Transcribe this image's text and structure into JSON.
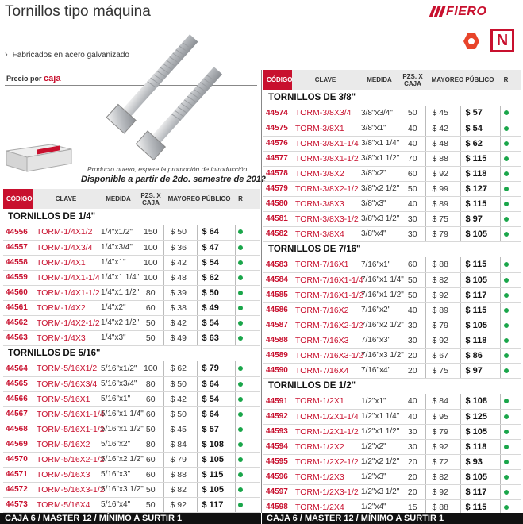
{
  "header": {
    "title": "Tornillos tipo máquina",
    "subtitle": "Fabricados en acero galvanizado",
    "brand": "FIERO",
    "badge_letter": "N",
    "price_by": "Precio por",
    "price_unit": "caja"
  },
  "promo": {
    "line1": "Producto nuevo, espere la promoción de introducción",
    "line2": "Disponible a partir de 2do. semestre de 2012"
  },
  "columns": {
    "code": "CÓDIGO",
    "clave": "CLAVE",
    "medida": "MEDIDA",
    "pzs": "PZS. X CAJA",
    "mayoreo": "MAYOREO",
    "publico": "PÚBLICO",
    "r": "R"
  },
  "colors": {
    "accent": "#c8102e",
    "status_dot": "#1aa64a"
  },
  "left_sections": [
    {
      "title": "TORNILLOS DE 1/4\"",
      "rows": [
        {
          "code": "44556",
          "clave": "TORM-1/4X1/2",
          "medida": "1/4\"x1/2\"",
          "pzs": "150",
          "mayoreo": "$ 50",
          "publico": "$ 64"
        },
        {
          "code": "44557",
          "clave": "TORM-1/4X3/4",
          "medida": "1/4\"x3/4\"",
          "pzs": "100",
          "mayoreo": "$ 36",
          "publico": "$ 47"
        },
        {
          "code": "44558",
          "clave": "TORM-1/4X1",
          "medida": "1/4\"x1\"",
          "pzs": "100",
          "mayoreo": "$ 42",
          "publico": "$ 54"
        },
        {
          "code": "44559",
          "clave": "TORM-1/4X1-1/4",
          "medida": "1/4\"x1 1/4\"",
          "pzs": "100",
          "mayoreo": "$ 48",
          "publico": "$ 62"
        },
        {
          "code": "44560",
          "clave": "TORM-1/4X1-1/2",
          "medida": "1/4\"x1 1/2\"",
          "pzs": "80",
          "mayoreo": "$ 39",
          "publico": "$ 50"
        },
        {
          "code": "44561",
          "clave": "TORM-1/4X2",
          "medida": "1/4\"x2\"",
          "pzs": "60",
          "mayoreo": "$ 38",
          "publico": "$ 49"
        },
        {
          "code": "44562",
          "clave": "TORM-1/4X2-1/2",
          "medida": "1/4\"x2 1/2\"",
          "pzs": "50",
          "mayoreo": "$ 42",
          "publico": "$ 54"
        },
        {
          "code": "44563",
          "clave": "TORM-1/4X3",
          "medida": "1/4\"x3\"",
          "pzs": "50",
          "mayoreo": "$ 49",
          "publico": "$ 63"
        }
      ]
    },
    {
      "title": "TORNILLOS DE 5/16\"",
      "rows": [
        {
          "code": "44564",
          "clave": "TORM-5/16X1/2",
          "medida": "5/16\"x1/2\"",
          "pzs": "100",
          "mayoreo": "$ 62",
          "publico": "$ 79"
        },
        {
          "code": "44565",
          "clave": "TORM-5/16X3/4",
          "medida": "5/16\"x3/4\"",
          "pzs": "80",
          "mayoreo": "$ 50",
          "publico": "$ 64"
        },
        {
          "code": "44566",
          "clave": "TORM-5/16X1",
          "medida": "5/16\"x1\"",
          "pzs": "60",
          "mayoreo": "$ 42",
          "publico": "$ 54"
        },
        {
          "code": "44567",
          "clave": "TORM-5/16X1-1/4",
          "medida": "5/16\"x1 1/4\"",
          "pzs": "60",
          "mayoreo": "$ 50",
          "publico": "$ 64"
        },
        {
          "code": "44568",
          "clave": "TORM-5/16X1-1/2",
          "medida": "5/16\"x1 1/2\"",
          "pzs": "50",
          "mayoreo": "$ 45",
          "publico": "$ 57"
        },
        {
          "code": "44569",
          "clave": "TORM-5/16X2",
          "medida": "5/16\"x2\"",
          "pzs": "80",
          "mayoreo": "$ 84",
          "publico": "$ 108"
        },
        {
          "code": "44570",
          "clave": "TORM-5/16X2-1/2",
          "medida": "5/16\"x2 1/2\"",
          "pzs": "60",
          "mayoreo": "$ 79",
          "publico": "$ 105"
        },
        {
          "code": "44571",
          "clave": "TORM-5/16X3",
          "medida": "5/16\"x3\"",
          "pzs": "60",
          "mayoreo": "$ 88",
          "publico": "$ 115"
        },
        {
          "code": "44572",
          "clave": "TORM-5/16X3-1/2",
          "medida": "5/16\"x3 1/2\"",
          "pzs": "50",
          "mayoreo": "$ 82",
          "publico": "$ 105"
        },
        {
          "code": "44573",
          "clave": "TORM-5/16X4",
          "medida": "5/16\"x4\"",
          "pzs": "50",
          "mayoreo": "$ 92",
          "publico": "$ 117"
        }
      ]
    }
  ],
  "right_sections": [
    {
      "title": "TORNILLOS DE 3/8\"",
      "rows": [
        {
          "code": "44574",
          "clave": "TORM-3/8X3/4",
          "medida": "3/8\"x3/4\"",
          "pzs": "50",
          "mayoreo": "$ 45",
          "publico": "$ 57"
        },
        {
          "code": "44575",
          "clave": "TORM-3/8X1",
          "medida": "3/8\"x1\"",
          "pzs": "40",
          "mayoreo": "$ 42",
          "publico": "$ 54"
        },
        {
          "code": "44576",
          "clave": "TORM-3/8X1-1/4",
          "medida": "3/8\"x1 1/4\"",
          "pzs": "40",
          "mayoreo": "$ 48",
          "publico": "$ 62"
        },
        {
          "code": "44577",
          "clave": "TORM-3/8X1-1/2",
          "medida": "3/8\"x1 1/2\"",
          "pzs": "70",
          "mayoreo": "$ 88",
          "publico": "$ 115"
        },
        {
          "code": "44578",
          "clave": "TORM-3/8X2",
          "medida": "3/8\"x2\"",
          "pzs": "60",
          "mayoreo": "$ 92",
          "publico": "$ 118"
        },
        {
          "code": "44579",
          "clave": "TORM-3/8X2-1/2",
          "medida": "3/8\"x2 1/2\"",
          "pzs": "50",
          "mayoreo": "$ 99",
          "publico": "$ 127"
        },
        {
          "code": "44580",
          "clave": "TORM-3/8X3",
          "medida": "3/8\"x3\"",
          "pzs": "40",
          "mayoreo": "$ 89",
          "publico": "$ 115"
        },
        {
          "code": "44581",
          "clave": "TORM-3/8X3-1/2",
          "medida": "3/8\"x3 1/2\"",
          "pzs": "30",
          "mayoreo": "$ 75",
          "publico": "$ 97"
        },
        {
          "code": "44582",
          "clave": "TORM-3/8X4",
          "medida": "3/8\"x4\"",
          "pzs": "30",
          "mayoreo": "$ 79",
          "publico": "$ 105"
        }
      ]
    },
    {
      "title": "TORNILLOS DE 7/16\"",
      "rows": [
        {
          "code": "44583",
          "clave": "TORM-7/16X1",
          "medida": "7/16\"x1\"",
          "pzs": "60",
          "mayoreo": "$ 88",
          "publico": "$ 115"
        },
        {
          "code": "44584",
          "clave": "TORM-7/16X1-1/4",
          "medida": "7/16\"x1 1/4\"",
          "pzs": "50",
          "mayoreo": "$ 82",
          "publico": "$ 105"
        },
        {
          "code": "44585",
          "clave": "TORM-7/16X1-1/2",
          "medida": "7/16\"x1 1/2\"",
          "pzs": "50",
          "mayoreo": "$ 92",
          "publico": "$ 117"
        },
        {
          "code": "44586",
          "clave": "TORM-7/16X2",
          "medida": "7/16\"x2\"",
          "pzs": "40",
          "mayoreo": "$ 89",
          "publico": "$ 115"
        },
        {
          "code": "44587",
          "clave": "TORM-7/16X2-1/2",
          "medida": "7/16\"x2 1/2\"",
          "pzs": "30",
          "mayoreo": "$ 79",
          "publico": "$ 105"
        },
        {
          "code": "44588",
          "clave": "TORM-7/16X3",
          "medida": "7/16\"x3\"",
          "pzs": "30",
          "mayoreo": "$ 92",
          "publico": "$ 118"
        },
        {
          "code": "44589",
          "clave": "TORM-7/16X3-1/2",
          "medida": "7/16\"x3 1/2\"",
          "pzs": "20",
          "mayoreo": "$ 67",
          "publico": "$ 86"
        },
        {
          "code": "44590",
          "clave": "TORM-7/16X4",
          "medida": "7/16\"x4\"",
          "pzs": "20",
          "mayoreo": "$ 75",
          "publico": "$ 97"
        }
      ]
    },
    {
      "title": "TORNILLOS DE 1/2\"",
      "rows": [
        {
          "code": "44591",
          "clave": "TORM-1/2X1",
          "medida": "1/2\"x1\"",
          "pzs": "40",
          "mayoreo": "$ 84",
          "publico": "$ 108"
        },
        {
          "code": "44592",
          "clave": "TORM-1/2X1-1/4",
          "medida": "1/2\"x1 1/4\"",
          "pzs": "40",
          "mayoreo": "$ 95",
          "publico": "$ 125"
        },
        {
          "code": "44593",
          "clave": "TORM-1/2X1-1/2",
          "medida": "1/2\"x1 1/2\"",
          "pzs": "30",
          "mayoreo": "$ 79",
          "publico": "$ 105"
        },
        {
          "code": "44594",
          "clave": "TORM-1/2X2",
          "medida": "1/2\"x2\"",
          "pzs": "30",
          "mayoreo": "$ 92",
          "publico": "$ 118"
        },
        {
          "code": "44595",
          "clave": "TORM-1/2X2-1/2",
          "medida": "1/2\"x2 1/2\"",
          "pzs": "20",
          "mayoreo": "$ 72",
          "publico": "$ 93"
        },
        {
          "code": "44596",
          "clave": "TORM-1/2X3",
          "medida": "1/2\"x3\"",
          "pzs": "20",
          "mayoreo": "$ 82",
          "publico": "$ 105"
        },
        {
          "code": "44597",
          "clave": "TORM-1/2X3-1/2",
          "medida": "1/2\"x3 1/2\"",
          "pzs": "20",
          "mayoreo": "$ 92",
          "publico": "$ 117"
        },
        {
          "code": "44598",
          "clave": "TORM-1/2X4",
          "medida": "1/2\"x4\"",
          "pzs": "15",
          "mayoreo": "$ 88",
          "publico": "$ 115"
        }
      ]
    }
  ],
  "footer": "CAJA 6 / MASTER 12 / MÍNIMO A SURTIR 1"
}
